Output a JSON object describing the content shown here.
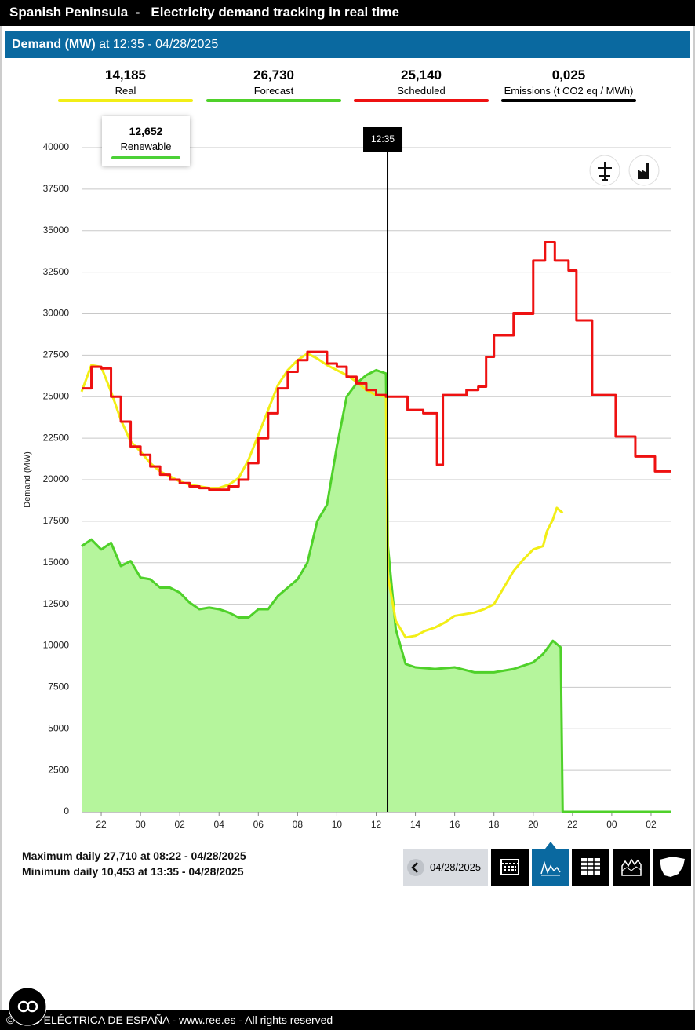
{
  "header": {
    "title": "Spanish Peninsula  -   Electricity demand tracking in real time"
  },
  "subheader": {
    "metric": "Demand (MW)",
    "time": " at 12:35 - 04/28/2025"
  },
  "readings": [
    {
      "value": "14,185"
    },
    {
      "value": "26,730"
    },
    {
      "value": "25,140"
    },
    {
      "value": "0,025",
      "label": "Emissions (t CO2 eq / MWh)",
      "color": "#000000"
    }
  ],
  "renewable": {
    "value": "12,652",
    "label": "Renewable",
    "color": "#4cd137"
  },
  "chart_data": {
    "type": "line",
    "ylabel": "Demand (MW)",
    "xlim": [
      21,
      51
    ],
    "ylim": [
      0,
      40000
    ],
    "yticks": [
      0,
      2500,
      5000,
      7500,
      10000,
      12500,
      15000,
      17500,
      20000,
      22500,
      25000,
      27500,
      30000,
      32500,
      35000,
      37500,
      40000
    ],
    "xticks": [
      22,
      {
        "value": 24,
        "label": "00"
      },
      {
        "value": 26,
        "label": "02"
      },
      {
        "value": 28,
        "label": "04"
      },
      {
        "value": 30,
        "label": "06"
      },
      {
        "value": 32,
        "label": "08"
      },
      {
        "value": 34,
        "label": "10"
      },
      {
        "value": 36,
        "label": "12"
      },
      {
        "value": 38,
        "label": "14"
      },
      {
        "value": 40,
        "label": "16"
      },
      {
        "value": 42,
        "label": "18"
      },
      {
        "value": 44,
        "label": "20"
      },
      {
        "value": 46,
        "label": "22"
      },
      {
        "value": 48,
        "label": "00"
      },
      {
        "value": 50,
        "label": "02"
      }
    ],
    "grid": true,
    "cursor": {
      "x": 36.58,
      "label": "12:35"
    },
    "series": [
      {
        "name": "Forecast",
        "color": "#4fd12a",
        "fill": "#b5f59c",
        "x": [
          21,
          21.5,
          22,
          22.5,
          23,
          23.5,
          24,
          24.5,
          25,
          25.5,
          26,
          26.5,
          27,
          27.5,
          28,
          28.5,
          29,
          29.5,
          30,
          30.5,
          31,
          31.5,
          32,
          32.5,
          33,
          33.5,
          34,
          34.5,
          35,
          35.5,
          36,
          36.5,
          36.6,
          37,
          37.5,
          38,
          39,
          40,
          41,
          42,
          43,
          44,
          44.5,
          45,
          45.4,
          45.5,
          51
        ],
        "values": [
          16000,
          16400,
          15800,
          16200,
          14800,
          15100,
          14100,
          14000,
          13500,
          13500,
          13200,
          12600,
          12200,
          12300,
          12200,
          12000,
          11700,
          11700,
          12200,
          12200,
          13000,
          13500,
          14000,
          15000,
          17500,
          18500,
          22000,
          25000,
          25800,
          26300,
          26600,
          26400,
          16000,
          11000,
          8900,
          8700,
          8600,
          8700,
          8400,
          8400,
          8600,
          9000,
          9500,
          10300,
          9900,
          0,
          0
        ]
      },
      {
        "name": "Real",
        "color": "#f2ee16",
        "x": [
          21,
          21.5,
          22,
          22.5,
          23,
          23.5,
          24,
          24.5,
          25,
          25.5,
          26,
          26.5,
          27,
          27.5,
          28,
          28.5,
          29,
          29.5,
          30,
          30.5,
          31,
          31.5,
          32,
          32.5,
          33,
          33.5,
          34,
          34.5,
          35,
          35.5,
          36,
          36.5,
          36.6,
          37,
          37.5,
          38,
          38.5,
          39,
          39.5,
          40,
          40.5,
          41,
          41.5,
          42,
          42.5,
          43,
          43.5,
          44,
          44.5,
          44.7,
          45,
          45.2,
          45.5
        ],
        "values": [
          25300,
          26900,
          26800,
          25300,
          23600,
          22300,
          21700,
          21000,
          20500,
          20200,
          19900,
          19700,
          19600,
          19500,
          19500,
          19700,
          20100,
          21200,
          22700,
          24200,
          25700,
          26600,
          27200,
          27600,
          27300,
          26900,
          26600,
          26300,
          25900,
          25400,
          25100,
          25000,
          14185,
          11500,
          10500,
          10600,
          10900,
          11100,
          11400,
          11800,
          11900,
          12000,
          12200,
          12500,
          13500,
          14500,
          15200,
          15800,
          16000,
          16900,
          17600,
          18300,
          18000
        ]
      },
      {
        "name": "Scheduled",
        "color": "#ee1111",
        "step": true,
        "x": [
          21,
          21.5,
          22,
          22.5,
          23,
          23.5,
          24,
          24.5,
          25,
          25.5,
          26,
          26.5,
          27,
          27.5,
          28,
          28.5,
          29,
          29.5,
          30,
          30.5,
          31,
          31.5,
          32,
          32.5,
          33,
          33.5,
          34,
          34.5,
          35,
          35.5,
          36,
          36.5,
          36.7,
          37.6,
          38.4,
          39.1,
          39.4,
          40.6,
          41.2,
          41.6,
          42,
          43,
          44,
          44.6,
          45.1,
          45.8,
          46.2,
          47,
          48.2,
          49.2,
          50.2,
          51
        ],
        "values": [
          25500,
          26800,
          26700,
          25000,
          23500,
          22000,
          21500,
          20800,
          20300,
          20000,
          19800,
          19600,
          19500,
          19400,
          19400,
          19600,
          20000,
          21000,
          22500,
          24000,
          25500,
          26500,
          27200,
          27700,
          27700,
          27000,
          26800,
          26200,
          25800,
          25400,
          25100,
          25000,
          25000,
          24200,
          24000,
          20900,
          25100,
          25400,
          25600,
          27400,
          28700,
          30000,
          33200,
          34300,
          33200,
          32600,
          29600,
          25100,
          22600,
          21400,
          20500,
          20500
        ]
      }
    ]
  },
  "stats": {
    "max": "Maximum daily 27,710 at 08:22 - 04/28/2025",
    "min": "Minimum daily 10,453 at 13:35 - 04/28/2025"
  },
  "nav": {
    "date": "04/28/2025"
  },
  "footer": {
    "text": "© RED ELÉCTRICA DE ESPAÑA - www.ree.es - All rights reserved"
  }
}
